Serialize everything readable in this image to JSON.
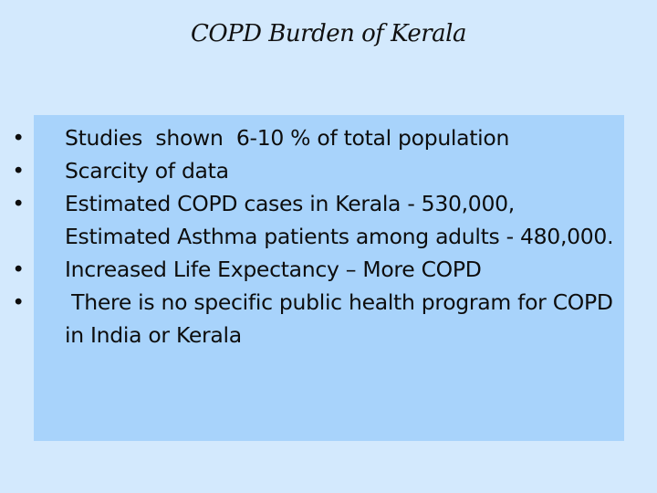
{
  "slide": {
    "title": "COPD Burden of Kerala",
    "bullet_symbol": "•",
    "bullets": [
      {
        "text": "Studies  shown  6-10 % of total population"
      },
      {
        "text": "Scarcity of data"
      },
      {
        "text": "Estimated COPD cases in Kerala - 530,000, Estimated Asthma patients among adults - 480,000."
      },
      {
        "text": "Increased Life Expectancy – More COPD"
      },
      {
        "text": " There is no specific public health program for COPD in India or Kerala"
      }
    ]
  },
  "colors": {
    "background": "#d3e9fd",
    "content_box": "#a8d3fb",
    "text": "#0d0d0d"
  }
}
